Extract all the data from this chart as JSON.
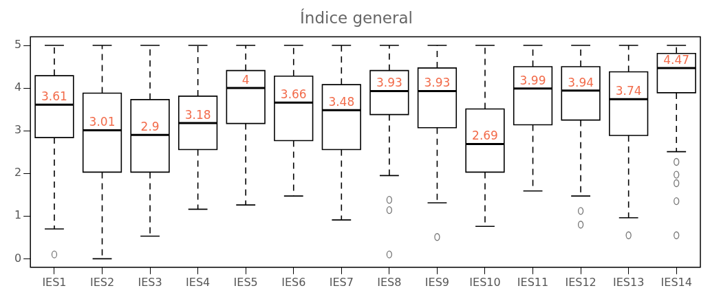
{
  "chart_data": {
    "type": "box",
    "title": "Índice general",
    "categories": [
      "IES1",
      "IES2",
      "IES3",
      "IES4",
      "IES5",
      "IES6",
      "IES7",
      "IES8",
      "IES9",
      "IES10",
      "IES11",
      "IES12",
      "IES13",
      "IES14"
    ],
    "color": "#000000",
    "boxes": [
      {
        "low": 0.7,
        "q1": 2.84,
        "median": 3.61,
        "q3": 4.29,
        "high": 5,
        "outliers": [
          0.1
        ]
      },
      {
        "low": 0,
        "q1": 2.03,
        "median": 3.01,
        "q3": 3.88,
        "high": 5
      },
      {
        "low": 0.53,
        "q1": 2.03,
        "median": 2.9,
        "q3": 3.73,
        "high": 5
      },
      {
        "low": 1.16,
        "q1": 2.56,
        "median": 3.18,
        "q3": 3.81,
        "high": 5
      },
      {
        "low": 1.26,
        "q1": 3.17,
        "median": 4,
        "q3": 4.41,
        "high": 5
      },
      {
        "low": 1.47,
        "q1": 2.77,
        "median": 3.66,
        "q3": 4.28,
        "high": 5
      },
      {
        "low": 0.91,
        "q1": 2.56,
        "median": 3.48,
        "q3": 4.08,
        "high": 5
      },
      {
        "low": 1.95,
        "q1": 3.38,
        "median": 3.93,
        "q3": 4.41,
        "high": 5,
        "outliers": [
          1.38,
          1.14,
          0.1
        ]
      },
      {
        "low": 1.31,
        "q1": 3.07,
        "median": 3.93,
        "q3": 4.47,
        "high": 5,
        "outliers": [
          0.51
        ]
      },
      {
        "low": 0.76,
        "q1": 2.03,
        "median": 2.69,
        "q3": 3.51,
        "high": 5
      },
      {
        "low": 1.59,
        "q1": 3.14,
        "median": 3.99,
        "q3": 4.5,
        "high": 5
      },
      {
        "low": 1.47,
        "q1": 3.25,
        "median": 3.94,
        "q3": 4.5,
        "high": 5,
        "outliers": [
          1.12,
          0.8
        ]
      },
      {
        "low": 0.96,
        "q1": 2.89,
        "median": 3.74,
        "q3": 4.38,
        "high": 5,
        "outliers": [
          0.55
        ]
      },
      {
        "low": 2.51,
        "q1": 3.89,
        "median": 4.47,
        "q3": 4.81,
        "high": 5,
        "outliers": [
          2.27,
          1.97,
          1.77,
          1.35,
          0.55
        ]
      }
    ],
    "ylim": [
      -0.2,
      5.2
    ],
    "yticks": [
      0,
      1,
      2,
      3,
      4,
      5
    ],
    "annotations": [
      {
        "text": "3.61",
        "x": "IES1",
        "y": 3.61
      },
      {
        "text": "3.01",
        "x": "IES2",
        "y": 3.01
      },
      {
        "text": "2.9",
        "x": "IES3",
        "y": 2.9
      },
      {
        "text": "3.18",
        "x": "IES4",
        "y": 3.18
      },
      {
        "text": "4",
        "x": "IES5",
        "y": 4
      },
      {
        "text": "3.66",
        "x": "IES6",
        "y": 3.66
      },
      {
        "text": "3.48",
        "x": "IES7",
        "y": 3.48
      },
      {
        "text": "3.93",
        "x": "IES8",
        "y": 3.93
      },
      {
        "text": "3.93",
        "x": "IES9",
        "y": 3.93
      },
      {
        "text": "2.69",
        "x": "IES10",
        "y": 2.69
      },
      {
        "text": "3.99",
        "x": "IES11",
        "y": 3.99
      },
      {
        "text": "3.94",
        "x": "IES12",
        "y": 3.94
      },
      {
        "text": "3.74",
        "x": "IES13",
        "y": 3.74
      },
      {
        "text": "4.47",
        "x": "IES14",
        "y": 4.47
      }
    ]
  }
}
